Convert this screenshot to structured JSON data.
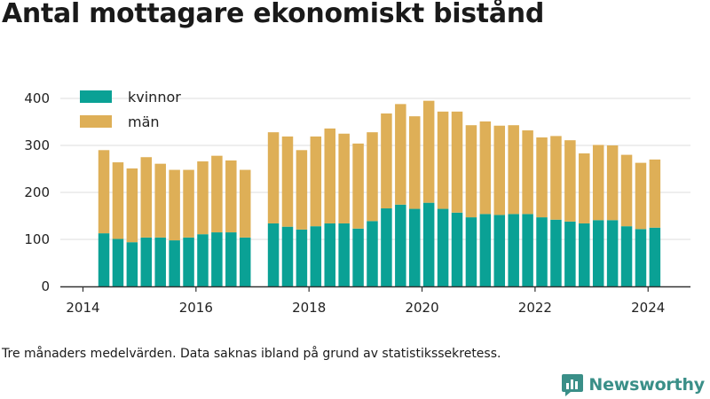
{
  "header": {
    "title": "Antal mottagare ekonomiskt bistånd"
  },
  "footer": {
    "caption": "Tre månaders medelvärden. Data saknas ibland på grund av statistikssekretess.",
    "brand": "Newsworthy"
  },
  "colors": {
    "kvinnor": "#0aa195",
    "man": "#deaf57",
    "grid": "#dddddd",
    "axis": "#333333",
    "brand": "#3a8f88"
  },
  "icons": {
    "brand_logo": "newsworthy-logo-icon"
  },
  "chart_data": {
    "type": "bar",
    "stacked": true,
    "title": "Antal mottagare ekonomiskt bistånd",
    "xlabel": "",
    "ylabel": "",
    "ylim": [
      0,
      400
    ],
    "yticks": [
      0,
      100,
      200,
      300,
      400
    ],
    "xticks": [
      2014,
      2016,
      2018,
      2020,
      2022,
      2024
    ],
    "xlim": [
      2013.6,
      2024.75
    ],
    "grid": true,
    "legend": "top-left",
    "x": [
      2014.37,
      2014.62,
      2014.87,
      2015.12,
      2015.37,
      2015.62,
      2015.87,
      2016.12,
      2016.37,
      2016.62,
      2016.87,
      2017.37,
      2017.62,
      2017.87,
      2018.12,
      2018.37,
      2018.62,
      2018.87,
      2019.12,
      2019.37,
      2019.62,
      2019.87,
      2020.12,
      2020.37,
      2020.62,
      2020.87,
      2021.12,
      2021.37,
      2021.62,
      2021.87,
      2022.12,
      2022.37,
      2022.62,
      2022.87,
      2023.12,
      2023.37,
      2023.62,
      2023.87,
      2024.12
    ],
    "series": [
      {
        "name": "kvinnor",
        "values": [
          113,
          101,
          94,
          104,
          104,
          98,
          104,
          111,
          115,
          115,
          104,
          134,
          127,
          121,
          128,
          134,
          134,
          123,
          139,
          166,
          174,
          165,
          178,
          165,
          157,
          147,
          154,
          152,
          154,
          154,
          147,
          142,
          138,
          134,
          141,
          141,
          128,
          122,
          125
        ]
      },
      {
        "name": "män",
        "values": [
          177,
          163,
          157,
          171,
          157,
          150,
          144,
          155,
          163,
          153,
          144,
          194,
          192,
          169,
          191,
          202,
          191,
          181,
          189,
          202,
          214,
          197,
          217,
          207,
          215,
          196,
          197,
          190,
          189,
          178,
          170,
          178,
          173,
          149,
          160,
          159,
          152,
          141,
          145
        ]
      }
    ]
  }
}
